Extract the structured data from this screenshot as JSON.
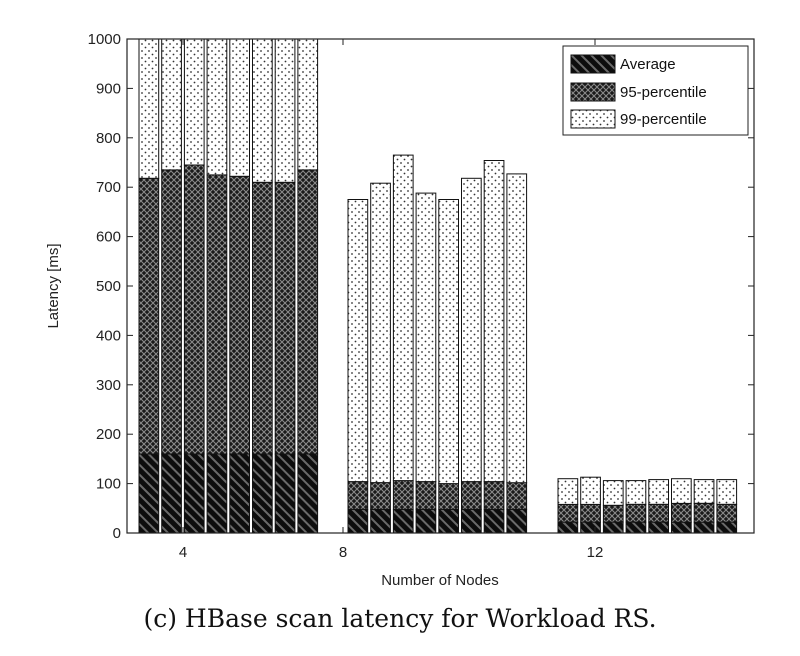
{
  "caption": "(c) HBase scan latency for Workload RS.",
  "chart_data": {
    "type": "bar",
    "stacked": true,
    "xlabel": "Number of Nodes",
    "ylabel": "Latency [ms]",
    "ylim": [
      0,
      1000
    ],
    "yticks": [
      0,
      100,
      200,
      300,
      400,
      500,
      600,
      700,
      800,
      900,
      1000
    ],
    "xticks": [
      "4",
      "8",
      "12"
    ],
    "grid": false,
    "legend_position": "top-right",
    "groups": [
      {
        "label": "4",
        "average": [
          160,
          160,
          160,
          160,
          160,
          160,
          160,
          160
        ],
        "p95": [
          718,
          735,
          745,
          725,
          722,
          710,
          710,
          735
        ],
        "p99": [
          1000,
          1000,
          1000,
          1000,
          1000,
          1000,
          1000,
          1000
        ]
      },
      {
        "label": "8",
        "average": [
          48,
          48,
          48,
          48,
          48,
          48,
          48,
          48
        ],
        "p95": [
          104,
          102,
          106,
          104,
          100,
          104,
          104,
          102
        ],
        "p99": [
          675,
          708,
          765,
          688,
          675,
          718,
          754,
          727
        ]
      },
      {
        "label": "12",
        "average": [
          22,
          22,
          22,
          22,
          22,
          22,
          22,
          22
        ],
        "p95": [
          58,
          58,
          56,
          58,
          58,
          60,
          60,
          58
        ],
        "p99": [
          110,
          113,
          106,
          106,
          108,
          110,
          108,
          108
        ]
      }
    ],
    "series": [
      {
        "key": "average",
        "name": "Average",
        "pattern": "diagonal-hatch"
      },
      {
        "key": "p95",
        "name": "95-percentile",
        "pattern": "cross-hatch"
      },
      {
        "key": "p99",
        "name": "99-percentile",
        "pattern": "dots"
      }
    ]
  }
}
